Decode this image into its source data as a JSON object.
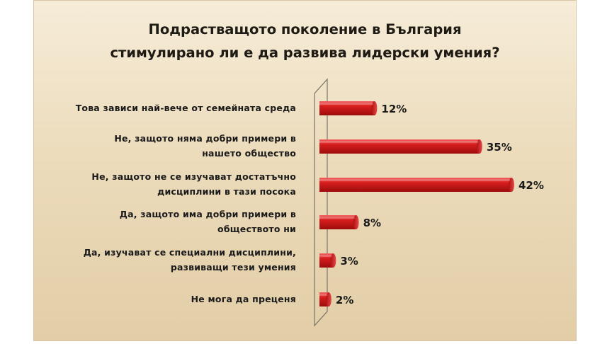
{
  "chart_data": {
    "type": "bar",
    "orientation": "horizontal",
    "title": [
      "Подрастващото поколение в България",
      "стимулирано ли е да развива лидерски умения?"
    ],
    "categories": [
      [
        "Това зависи най-вече от семейната среда"
      ],
      [
        "Не, защото няма добри примери в",
        "нашето общество"
      ],
      [
        "Не, защото не се изучават достатъчно",
        "дисциплини в тази посока"
      ],
      [
        "Да, защото има добри примери в",
        "обществото ни"
      ],
      [
        "Да, изучават се специални дисциплини,",
        "развиващи тези умения"
      ],
      [
        "Не мога да преценя"
      ]
    ],
    "values": [
      12,
      35,
      42,
      8,
      3,
      2
    ],
    "value_labels": [
      "12%",
      "35%",
      "42%",
      "8%",
      "3%",
      "2%"
    ],
    "xlim": [
      0,
      42
    ],
    "bar_color": "#d41c1c",
    "grid": false,
    "legend": "none"
  }
}
